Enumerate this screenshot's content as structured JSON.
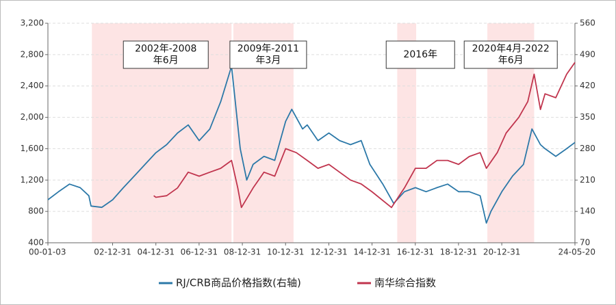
{
  "chart_data": {
    "type": "line",
    "xlim": [
      "2000-01-03",
      "2024-05-20"
    ],
    "xticks": [
      {
        "value": "2000-01-03",
        "label": "00-01-03"
      },
      {
        "value": "2002-12-31",
        "label": "02-12-31"
      },
      {
        "value": "2004-12-31",
        "label": "04-12-31"
      },
      {
        "value": "2006-12-31",
        "label": "06-12-31"
      },
      {
        "value": "2008-12-31",
        "label": "08-12-31"
      },
      {
        "value": "2010-12-31",
        "label": "10-12-31"
      },
      {
        "value": "2012-12-31",
        "label": "12-12-31"
      },
      {
        "value": "2014-12-31",
        "label": "14-12-31"
      },
      {
        "value": "2016-12-31",
        "label": "16-12-31"
      },
      {
        "value": "2018-12-31",
        "label": "18-12-31"
      },
      {
        "value": "2020-12-31",
        "label": "20-12-31"
      },
      {
        "value": "2024-05-20",
        "label": "24-05-20"
      }
    ],
    "ylim": [
      400,
      3200
    ],
    "yticks": [
      400,
      800,
      {
        "value": 1200,
        "label": "1,200"
      },
      {
        "value": 1600,
        "label": "1,600"
      },
      {
        "value": 2000,
        "label": "2,000"
      },
      {
        "value": 2400,
        "label": "2,400"
      },
      {
        "value": 2800,
        "label": "2,800"
      },
      {
        "value": 3200,
        "label": "3,200"
      }
    ],
    "y2lim": [
      70,
      560
    ],
    "y2ticks": [
      70,
      140,
      210,
      280,
      350,
      420,
      490,
      560
    ],
    "grid": true,
    "legend": "bottom",
    "annotations": [
      {
        "lines": [
          "2002年-2008",
          "年6月"
        ],
        "start": "2002-01-15",
        "end": "2008-07-01"
      },
      {
        "lines": [
          "2009年-2011",
          "年3月"
        ],
        "start": "2008-08-01",
        "end": "2011-05-15"
      },
      {
        "lines": [
          "2016年"
        ],
        "start": "2016-03-01",
        "end": "2017-01-15"
      },
      {
        "lines": [
          "2020年4月-2022",
          "年6月"
        ],
        "start": "2020-05-01",
        "end": "2022-07-01"
      }
    ],
    "series": [
      {
        "name": "RJ/CRB商品价格指数(右轴)",
        "color": "#2b78a8",
        "axis": "y2",
        "x": [
          "2000-01-03",
          "2000-07-01",
          "2001-01-01",
          "2001-07-01",
          "2001-11-25",
          "2002-01-01",
          "2002-07-01",
          "2003-01-01",
          "2003-07-01",
          "2004-01-01",
          "2004-07-01",
          "2005-01-01",
          "2005-07-01",
          "2006-01-01",
          "2006-07-01",
          "2007-01-01",
          "2007-07-01",
          "2008-01-01",
          "2008-07-01",
          "2008-11-25",
          "2009-03-15",
          "2009-07-01",
          "2010-01-01",
          "2010-07-01",
          "2011-01-01",
          "2011-04-15",
          "2011-10-15",
          "2012-01-01",
          "2012-07-01",
          "2013-01-01",
          "2013-07-01",
          "2014-01-01",
          "2014-07-01",
          "2014-11-25",
          "2015-07-01",
          "2016-01-01",
          "2016-07-01",
          "2017-01-01",
          "2017-07-01",
          "2018-01-01",
          "2018-07-01",
          "2019-01-01",
          "2019-07-01",
          "2020-01-01",
          "2020-04-15",
          "2020-07-01",
          "2021-01-01",
          "2021-07-01",
          "2022-01-01",
          "2022-05-25",
          "2022-10-15",
          "2023-01-01",
          "2023-07-01",
          "2024-01-01",
          "2024-05-20"
        ],
        "values": [
          166,
          184,
          201,
          193,
          175,
          152,
          149,
          166,
          193,
          219,
          245,
          271,
          289,
          315,
          333,
          298,
          324,
          385,
          464,
          280,
          210,
          245,
          263,
          254,
          341,
          368,
          324,
          333,
          298,
          315,
          298,
          289,
          298,
          245,
          201,
          158,
          184,
          193,
          184,
          193,
          201,
          184,
          184,
          175,
          114,
          140,
          184,
          219,
          245,
          324,
          289,
          280,
          263,
          280,
          294
        ]
      },
      {
        "name": "南华综合指数",
        "color": "#c0344d",
        "x": [
          "2004-11-25",
          "2005-01-01",
          "2005-07-01",
          "2006-01-01",
          "2006-07-01",
          "2007-01-01",
          "2007-07-01",
          "2008-01-01",
          "2008-07-01",
          "2008-10-15",
          "2008-12-15",
          "2009-07-01",
          "2010-01-01",
          "2010-07-01",
          "2011-01-01",
          "2011-07-01",
          "2012-01-01",
          "2012-07-01",
          "2013-01-01",
          "2013-07-01",
          "2014-01-01",
          "2014-07-01",
          "2015-01-01",
          "2015-11-25",
          "2016-07-01",
          "2017-01-01",
          "2017-07-01",
          "2018-01-01",
          "2018-07-01",
          "2019-01-01",
          "2019-07-01",
          "2020-01-01",
          "2020-04-15",
          "2020-10-15",
          "2021-03-15",
          "2021-10-15",
          "2022-03-15",
          "2022-07-01",
          "2022-10-15",
          "2023-01-01",
          "2023-07-01",
          "2024-01-01",
          "2024-05-20"
        ],
        "values": [
          1000,
          980,
          1000,
          1100,
          1300,
          1250,
          1300,
          1350,
          1450,
          1100,
          850,
          1100,
          1300,
          1250,
          1600,
          1550,
          1450,
          1350,
          1400,
          1300,
          1200,
          1150,
          1050,
          850,
          1100,
          1350,
          1350,
          1450,
          1450,
          1400,
          1500,
          1550,
          1350,
          1550,
          1800,
          2000,
          2200,
          2550,
          2100,
          2300,
          2250,
          2550,
          2700
        ]
      }
    ]
  }
}
